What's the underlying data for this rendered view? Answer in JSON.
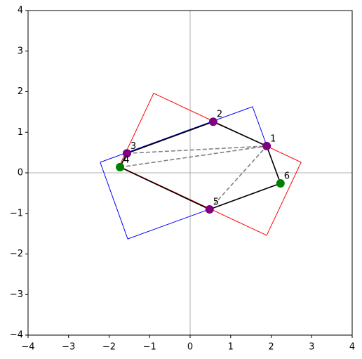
{
  "chart_data": {
    "type": "scatter",
    "xlim": [
      -4,
      4
    ],
    "ylim": [
      -4,
      4
    ],
    "xticks": [
      {
        "value": -4,
        "label": "−4"
      },
      {
        "value": -3,
        "label": "−3"
      },
      {
        "value": -2,
        "label": "−2"
      },
      {
        "value": -1,
        "label": "−1"
      },
      0,
      1,
      2,
      3,
      4
    ],
    "yticks": [
      {
        "value": -4,
        "label": "−4"
      },
      {
        "value": -3,
        "label": "−3"
      },
      {
        "value": -2,
        "label": "−2"
      },
      {
        "value": -1,
        "label": "−1"
      },
      0,
      1,
      2,
      3,
      4
    ],
    "point_labels": [
      "1",
      "2",
      "3",
      "4",
      "5",
      "6"
    ],
    "x": [
      1.89,
      0.57,
      -1.56,
      -1.73,
      0.48,
      2.23
    ],
    "y": [
      0.66,
      1.26,
      0.48,
      0.14,
      -0.9,
      -0.26
    ],
    "point_colors": [
      "purple",
      "purple",
      "purple",
      "green",
      "purple",
      "green"
    ],
    "polygons": [
      {
        "color": "red",
        "x": [
          -0.9,
          2.74,
          1.89,
          -1.75
        ],
        "y": [
          1.96,
          0.26,
          -1.54,
          0.16
        ]
      },
      {
        "color": "blue",
        "x": [
          -2.22,
          1.54,
          2.23,
          -1.54
        ],
        "y": [
          0.26,
          1.63,
          -0.26,
          -1.63
        ]
      },
      {
        "color": "black",
        "x": [
          -1.56,
          0.57,
          1.89,
          2.23,
          0.48,
          -1.73
        ],
        "y": [
          0.48,
          1.26,
          0.66,
          -0.26,
          -0.9,
          0.14
        ]
      }
    ],
    "dashed_color": "gray",
    "dashed": [
      {
        "x": [
          -1.56,
          1.89
        ],
        "y": [
          0.48,
          0.66
        ]
      },
      {
        "x": [
          -1.73,
          1.89
        ],
        "y": [
          0.14,
          0.66
        ]
      },
      {
        "x": [
          0.48,
          1.89
        ],
        "y": [
          -0.9,
          0.66
        ]
      }
    ]
  }
}
